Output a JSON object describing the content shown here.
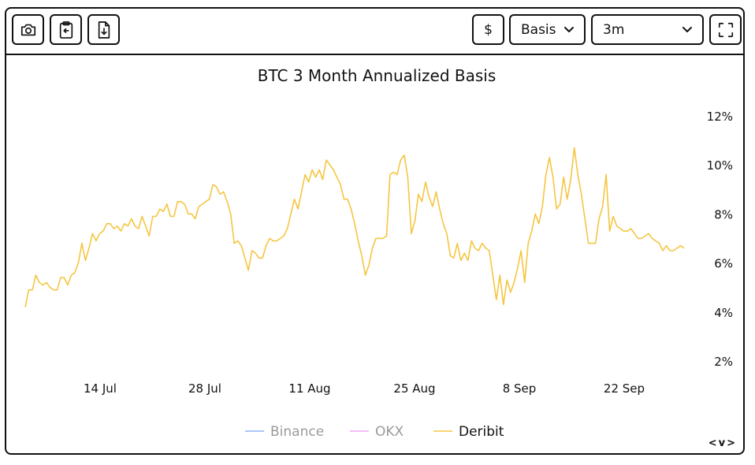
{
  "toolbar": {
    "camera_icon": "camera-icon",
    "clipboard_icon": "clipboard-icon",
    "download_icon": "download-file-icon",
    "currency_label": "$",
    "metric_select": {
      "value": "Basis"
    },
    "period_select": {
      "value": "3m"
    },
    "fullscreen_icon": "fullscreen-icon"
  },
  "nav": {
    "prev": "<",
    "next": ">",
    "label": "v"
  },
  "chart_data": {
    "type": "line",
    "title": "BTC 3 Month Annualized Basis",
    "x_tick_labels": [
      "14 Jul",
      "28 Jul",
      "11 Aug",
      "25 Aug",
      "8 Sep",
      "22 Sep"
    ],
    "y_tick_labels": [
      "12%",
      "10%",
      "8%",
      "6%",
      "4%",
      "2%"
    ],
    "ylim": [
      2,
      12
    ],
    "y_unit": "%",
    "grid": false,
    "legend_position": "bottom",
    "legend": [
      {
        "name": "Binance",
        "color": "#8fb4f5",
        "active": false
      },
      {
        "name": "OKX",
        "color": "#f0a6f0",
        "active": false
      },
      {
        "name": "Deribit",
        "color": "#f5c542",
        "active": true
      }
    ],
    "series": [
      {
        "name": "Deribit",
        "color": "#f5c542",
        "x_start": "2024-07-04",
        "x_end": "2024-09-30",
        "values": [
          4.2,
          4.9,
          4.9,
          5.5,
          5.2,
          5.1,
          5.2,
          5.0,
          4.9,
          4.9,
          5.4,
          5.4,
          5.1,
          5.5,
          5.6,
          6.0,
          6.8,
          6.1,
          6.6,
          7.2,
          6.9,
          7.2,
          7.3,
          7.6,
          7.6,
          7.4,
          7.5,
          7.3,
          7.6,
          7.5,
          7.8,
          7.5,
          7.4,
          7.9,
          7.5,
          7.1,
          7.9,
          7.9,
          8.2,
          8.1,
          8.4,
          7.9,
          7.9,
          8.5,
          8.5,
          8.4,
          8.0,
          8.0,
          7.8,
          8.3,
          8.4,
          8.5,
          8.6,
          9.2,
          9.1,
          8.8,
          8.9,
          8.5,
          8.0,
          6.8,
          6.9,
          6.7,
          6.2,
          5.7,
          6.5,
          6.4,
          6.2,
          6.2,
          6.7,
          7.0,
          6.9,
          6.9,
          7.0,
          7.1,
          7.4,
          8.0,
          8.6,
          8.2,
          8.9,
          9.6,
          9.3,
          9.8,
          9.5,
          9.8,
          9.4,
          10.2,
          10.0,
          9.8,
          9.5,
          9.2,
          8.6,
          8.6,
          8.2,
          7.6,
          6.9,
          6.3,
          5.5,
          5.9,
          6.6,
          7.0,
          7.0,
          7.0,
          7.1,
          9.6,
          9.7,
          9.6,
          10.2,
          10.4,
          9.5,
          7.2,
          7.7,
          8.8,
          8.5,
          9.3,
          8.7,
          8.3,
          8.9,
          8.2,
          7.6,
          7.2,
          6.3,
          6.2,
          6.8,
          6.1,
          6.4,
          6.1,
          6.9,
          6.6,
          6.5,
          6.8,
          6.6,
          6.5,
          5.5,
          4.5,
          5.5,
          4.3,
          5.3,
          4.8,
          5.2,
          5.8,
          6.5,
          5.2,
          6.8,
          7.3,
          8.0,
          7.6,
          8.3,
          9.6,
          10.3,
          9.5,
          8.2,
          8.4,
          9.5,
          8.6,
          9.4,
          10.7,
          9.6,
          8.8,
          7.8,
          6.8,
          6.8,
          6.8,
          7.8,
          8.3,
          9.6,
          7.3,
          7.9,
          7.5,
          7.4,
          7.3,
          7.3,
          7.4,
          7.2,
          7.0,
          7.0,
          7.1,
          7.2,
          7.0,
          6.9,
          6.8,
          6.5,
          6.7,
          6.5,
          6.5,
          6.6,
          6.7,
          6.6
        ]
      }
    ]
  }
}
